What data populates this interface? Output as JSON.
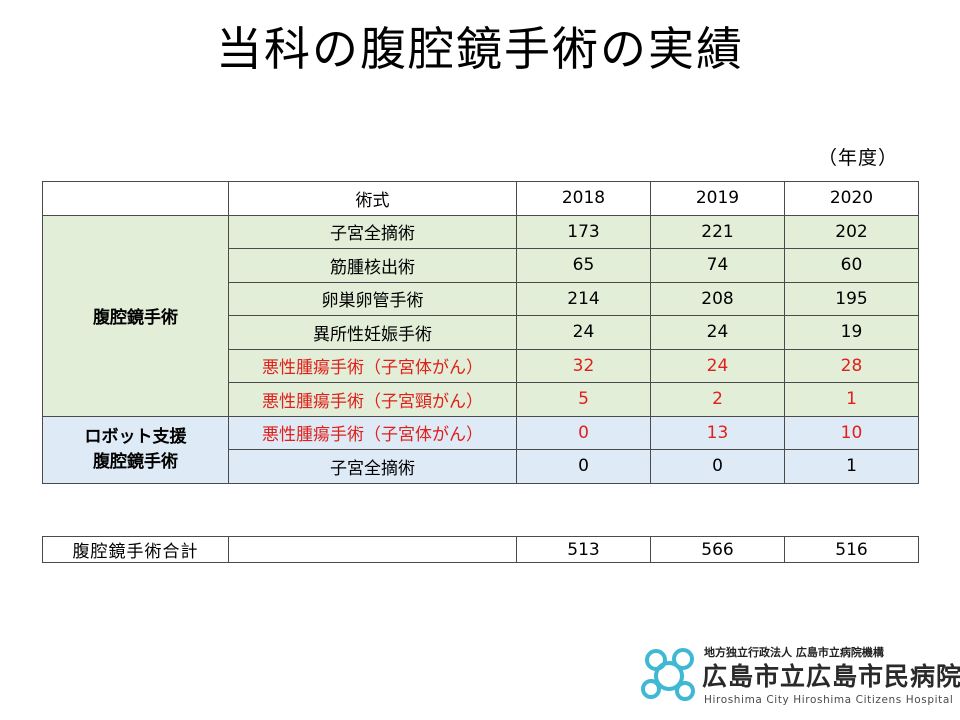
{
  "title": "当科の腹腔鏡手術の実績",
  "unit_note": "（年度）",
  "table": {
    "headers": [
      "",
      "術式",
      "2018",
      "2019",
      "2020"
    ],
    "groups": [
      {
        "category": "腹腔鏡手術",
        "rows": [
          {
            "procedure": "子宮全摘術",
            "values": [
              "173",
              "221",
              "202"
            ],
            "highlight": false
          },
          {
            "procedure": "筋腫核出術",
            "values": [
              "65",
              "74",
              "60"
            ],
            "highlight": false
          },
          {
            "procedure": "卵巣卵管手術",
            "values": [
              "214",
              "208",
              "195"
            ],
            "highlight": false
          },
          {
            "procedure": "異所性妊娠手術",
            "values": [
              "24",
              "24",
              "19"
            ],
            "highlight": false
          },
          {
            "procedure": "悪性腫瘍手術（子宮体がん）",
            "values": [
              "32",
              "24",
              "28"
            ],
            "highlight": true
          },
          {
            "procedure": "悪性腫瘍手術（子宮頸がん）",
            "values": [
              "5",
              "2",
              "1"
            ],
            "highlight": true
          }
        ]
      },
      {
        "category_lines": [
          "ロボット支援",
          "腹腔鏡手術"
        ],
        "rows": [
          {
            "procedure": "悪性腫瘍手術（子宮体がん）",
            "values": [
              "0",
              "13",
              "10"
            ],
            "highlight": true
          },
          {
            "procedure": "子宮全摘術",
            "values": [
              "0",
              "0",
              "1"
            ],
            "highlight": false
          }
        ]
      }
    ]
  },
  "totals": {
    "label": "腹腔鏡手術合計",
    "procedure": "",
    "values": [
      "513",
      "566",
      "516"
    ]
  },
  "logo": {
    "org": "地方独立行政法人 広島市立病院機構",
    "name": "広島市立広島市民病院",
    "name_en": "Hiroshima City Hiroshima Citizens Hospital"
  },
  "colors": {
    "laparoscopic_category": "#c6dfb4",
    "laparoscopic_rows": "#e2eed8",
    "robotic_category": "#bdd7ee",
    "robotic_rows": "#deeaf6",
    "malignant_text": "#e0201b",
    "logo_mark": "#3fb8d4"
  }
}
